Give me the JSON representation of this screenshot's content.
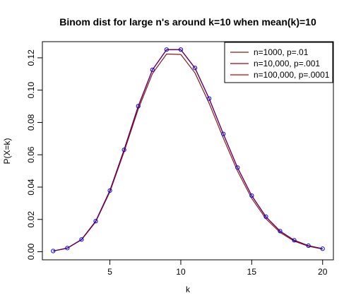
{
  "chart_data": {
    "type": "line",
    "title": "Binom dist for large n's around k=10 when mean(k)=10",
    "xlabel": "k",
    "ylabel": "P(X=k)",
    "xlim": [
      0.24,
      20.76
    ],
    "ylim": [
      -0.005,
      0.13
    ],
    "x_ticks": [
      5,
      10,
      15,
      20
    ],
    "y_ticks": [
      0.0,
      0.02,
      0.04,
      0.06,
      0.08,
      0.1,
      0.12
    ],
    "x_tick_labels": [
      "5",
      "10",
      "15",
      "20"
    ],
    "y_tick_labels": [
      "0.00",
      "0.02",
      "0.04",
      "0.06",
      "0.08",
      "0.10",
      "0.12"
    ],
    "grid": false,
    "legend_position": "top-right",
    "x": [
      1,
      2,
      3,
      4,
      5,
      6,
      7,
      8,
      9,
      10,
      11,
      12,
      13,
      14,
      15,
      16,
      17,
      18,
      19,
      20
    ],
    "series": [
      {
        "name": "n=1000, p=.01",
        "color": "#7F1F1F",
        "values": [
          0.00044,
          0.0022,
          0.00737,
          0.01849,
          0.03705,
          0.0618,
          0.08828,
          0.11024,
          0.12234,
          0.12208,
          0.11064,
          0.09183,
          0.07028,
          0.0499,
          0.03302,
          0.02045,
          0.0119,
          0.00653,
          0.00339,
          0.00167
        ]
      },
      {
        "name": "n=10,000, p=.001",
        "color": "#A0001F",
        "values": [
          0.00045,
          0.00226,
          0.00756,
          0.01891,
          0.03782,
          0.06302,
          0.09002,
          0.1125,
          0.12498,
          0.12497,
          0.1136,
          0.09465,
          0.0728,
          0.05199,
          0.03466,
          0.02166,
          0.01273,
          0.00707,
          0.00372,
          0.00186
        ]
      },
      {
        "name": "n=100,000, p=.0001",
        "color": "#CC0000",
        "values": [
          0.00045,
          0.00227,
          0.00757,
          0.01892,
          0.03783,
          0.06306,
          0.09008,
          0.1126,
          0.12511,
          0.12511,
          0.11374,
          0.09478,
          0.07291,
          0.05208,
          0.03472,
          0.0217,
          0.01276,
          0.00709,
          0.00373,
          0.00187
        ]
      }
    ],
    "points": {
      "color": "#0000FF",
      "values": [
        0.00045,
        0.00227,
        0.00757,
        0.01892,
        0.03783,
        0.06306,
        0.09008,
        0.1126,
        0.12511,
        0.12511,
        0.11374,
        0.09478,
        0.07291,
        0.05208,
        0.03472,
        0.0217,
        0.01276,
        0.00709,
        0.00373,
        0.00187
      ]
    },
    "overlay_line_color": "#4B0082",
    "axis_color": "#000000"
  }
}
